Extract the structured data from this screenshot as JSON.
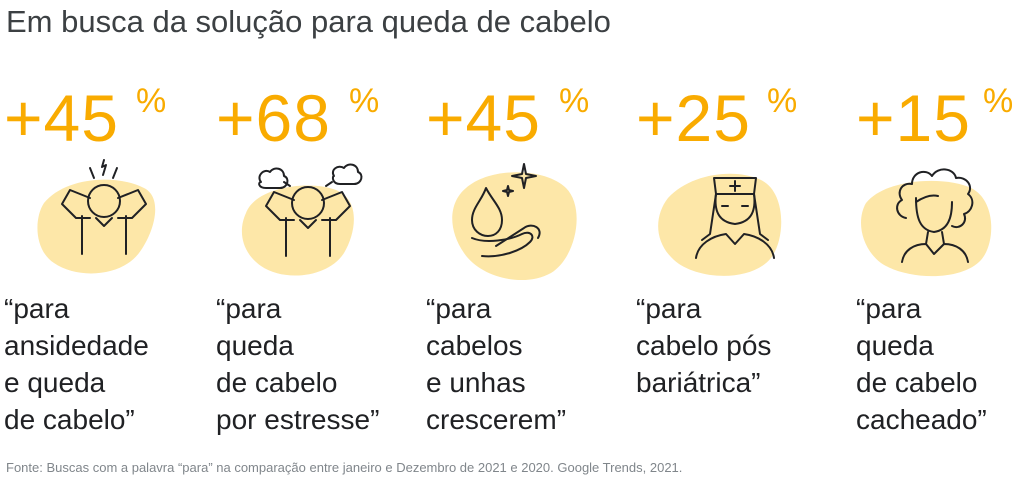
{
  "title": "Em busca da solução para queda de cabelo",
  "colors": {
    "accent": "#f9ab00",
    "blob": "#fde7a8",
    "text": "#202124",
    "muted": "#80868b"
  },
  "stats": [
    {
      "value": "+45",
      "unit": "%",
      "icon": "stressed-person-icon",
      "quote_lines": [
        "“para",
        "ansidedade",
        "e queda",
        "de cabelo”"
      ]
    },
    {
      "value": "+68",
      "unit": "%",
      "icon": "stressed-person-steam-icon",
      "quote_lines": [
        "“para",
        "queda",
        "de cabelo",
        "por estresse”"
      ]
    },
    {
      "value": "+45",
      "unit": "%",
      "icon": "drop-hand-sparkle-icon",
      "quote_lines": [
        "“para",
        "cabelos",
        "e unhas",
        "crescerem”"
      ]
    },
    {
      "value": "+25",
      "unit": "%",
      "icon": "nurse-icon",
      "quote_lines": [
        "“para",
        "cabelo pós",
        "bariátrica”"
      ]
    },
    {
      "value": "+15",
      "unit": "%",
      "icon": "curly-hair-person-icon",
      "quote_lines": [
        "“para",
        "queda",
        "de cabelo",
        "cacheado”"
      ]
    }
  ],
  "source": "Fonte: Buscas com a palavra “para” na comparação entre janeiro e Dezembro de 2021 e 2020. Google Trends, 2021."
}
